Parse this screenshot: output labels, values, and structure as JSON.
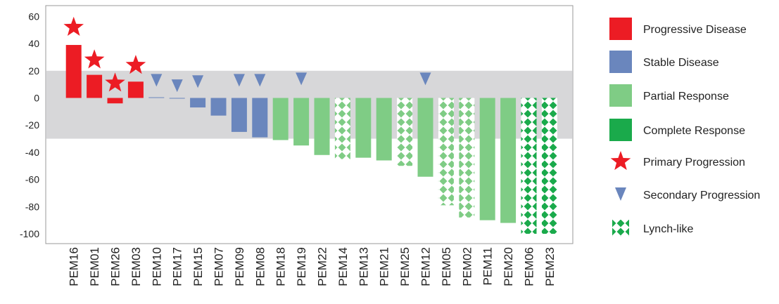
{
  "chart_data": {
    "type": "bar",
    "title": "",
    "xlabel": "",
    "ylabel": "",
    "ylim": [
      -100,
      60
    ],
    "yticks": [
      60,
      40,
      20,
      0,
      -20,
      -40,
      -60,
      -80,
      -100
    ],
    "band": [
      -30,
      20
    ],
    "grid": false,
    "legend_position": "right",
    "categories": [
      "PEM16",
      "PEM01",
      "PEM26",
      "PEM03",
      "PEM10",
      "PEM17",
      "PEM15",
      "PEM07",
      "PEM09",
      "PEM08",
      "PEM18",
      "PEM19",
      "PEM22",
      "PEM14",
      "PEM13",
      "PEM21",
      "PEM25",
      "PEM12",
      "PEM05",
      "PEM02",
      "PEM11",
      "PEM20",
      "PEM06",
      "PEM23"
    ],
    "values": [
      39,
      17,
      -4,
      12,
      0.5,
      0,
      -7,
      -13,
      -25,
      -29,
      -31,
      -35,
      -42,
      -45,
      -44,
      -46,
      -50,
      -58,
      -79,
      -88,
      -90,
      -92,
      -100,
      -100
    ],
    "response": [
      "Progressive Disease",
      "Progressive Disease",
      "Progressive Disease",
      "Progressive Disease",
      "Stable Disease",
      "Stable Disease",
      "Stable Disease",
      "Stable Disease",
      "Stable Disease",
      "Stable Disease",
      "Partial Response",
      "Partial Response",
      "Partial Response",
      "Partial Response",
      "Partial Response",
      "Partial Response",
      "Partial Response",
      "Partial Response",
      "Partial Response",
      "Partial Response",
      "Partial Response",
      "Partial Response",
      "Complete Response",
      "Complete Response"
    ],
    "lynch_like": [
      "PEM14",
      "PEM25",
      "PEM05",
      "PEM02",
      "PEM06",
      "PEM23"
    ],
    "primary_progression": [
      {
        "category": "PEM16",
        "y": 52
      },
      {
        "category": "PEM01",
        "y": 28
      },
      {
        "category": "PEM26",
        "y": 11
      },
      {
        "category": "PEM03",
        "y": 24
      }
    ],
    "secondary_progression": [
      {
        "category": "PEM10",
        "y": 13
      },
      {
        "category": "PEM17",
        "y": 9
      },
      {
        "category": "PEM15",
        "y": 12
      },
      {
        "category": "PEM09",
        "y": 13
      },
      {
        "category": "PEM08",
        "y": 13
      },
      {
        "category": "PEM19",
        "y": 14
      },
      {
        "category": "PEM12",
        "y": 14
      }
    ],
    "legend": [
      {
        "label": "Progressive Disease",
        "kind": "square",
        "color": "#ec1c24"
      },
      {
        "label": "Stable Disease",
        "kind": "square",
        "color": "#6a86bd"
      },
      {
        "label": "Partial Response",
        "kind": "square",
        "color": "#7fcc85"
      },
      {
        "label": "Complete Response",
        "kind": "square",
        "color": "#1aaa4b"
      },
      {
        "label": "Primary Progression",
        "kind": "star",
        "color": "#ec1c24"
      },
      {
        "label": "Secondary Progression",
        "kind": "triangle",
        "color": "#6a86bd"
      },
      {
        "label": "Lynch-like",
        "kind": "pattern",
        "color": "#1aaa4b"
      }
    ]
  },
  "colors": {
    "band": "#c9cacc",
    "progressive": "#ec1c24",
    "stable": "#6a86bd",
    "partial": "#7fcc85",
    "complete": "#1aaa4b",
    "axis": "#9a9a9a"
  }
}
